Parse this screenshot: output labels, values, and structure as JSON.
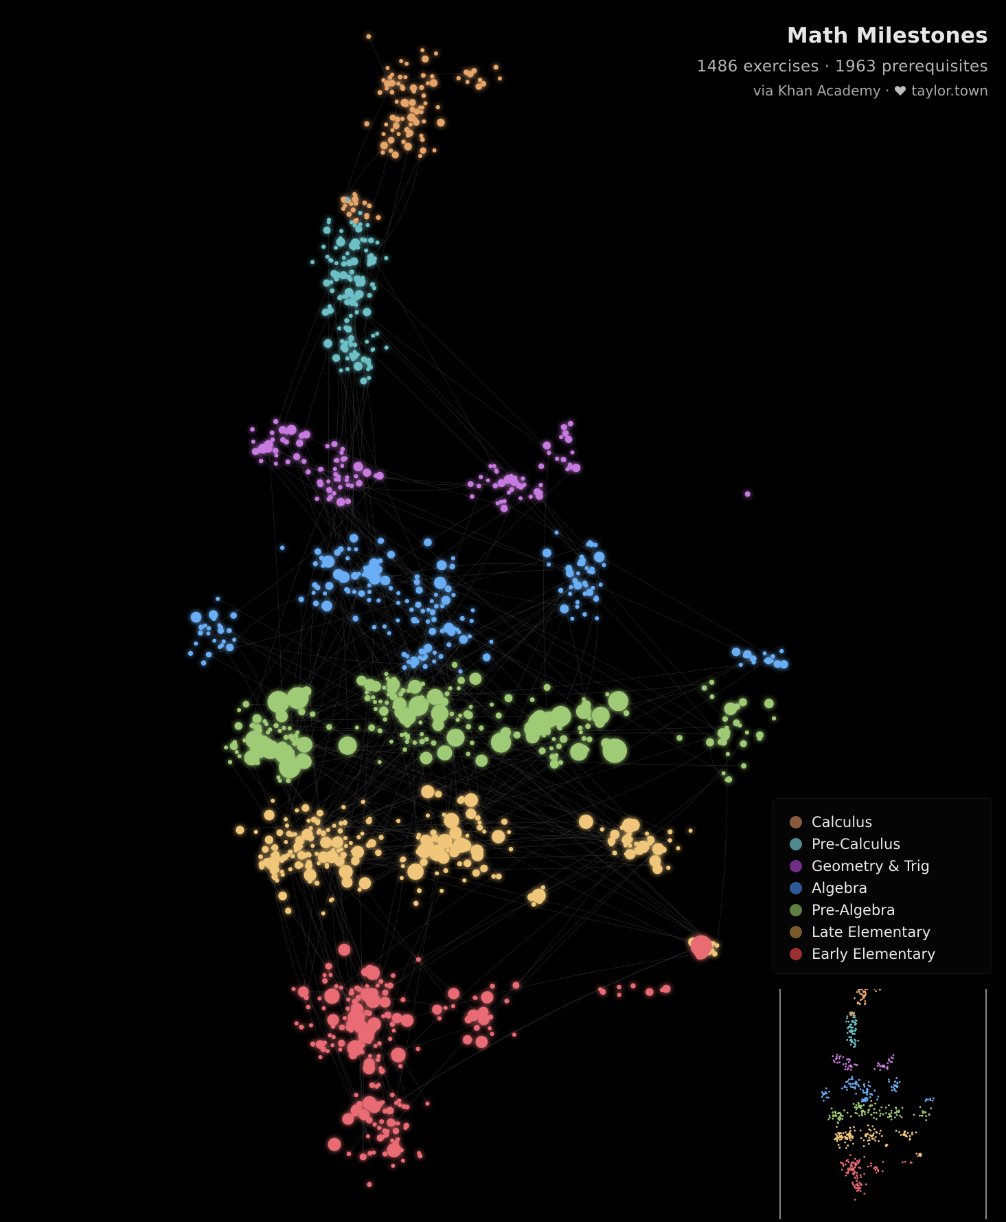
{
  "header": {
    "title": "Math Milestones",
    "subtitle": "1486 exercises · 1963 prerequisites",
    "credit_source": "via Khan Academy ·",
    "credit_author": "taylor.town"
  },
  "legend": [
    {
      "label": "Calculus",
      "color": "#8a5a3c",
      "node_color": "#e6a56b"
    },
    {
      "label": "Pre-Calculus",
      "color": "#4f8a90",
      "node_color": "#6cc0c6"
    },
    {
      "label": "Geometry & Trig",
      "color": "#6e2e86",
      "node_color": "#c77ae0"
    },
    {
      "label": "Algebra",
      "color": "#2f5a98",
      "node_color": "#6aaef5"
    },
    {
      "label": "Pre-Algebra",
      "color": "#5f7e44",
      "node_color": "#9fcb77"
    },
    {
      "label": "Late Elementary",
      "color": "#7a5a2a",
      "node_color": "#f0c67a"
    },
    {
      "label": "Early Elementary",
      "color": "#9a3030",
      "node_color": "#e96c74"
    }
  ],
  "icons": {
    "heart": "heart-icon"
  }
}
